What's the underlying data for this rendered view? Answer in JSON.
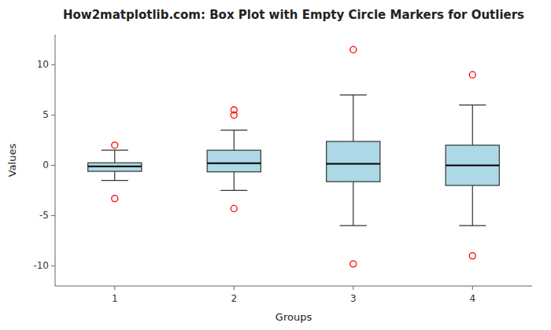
{
  "chart_data": {
    "type": "box",
    "title": "How2matplotlib.com: Box Plot with Empty Circle Markers for Outliers",
    "x_label": "Groups",
    "y_label": "Values",
    "categories": [
      "1",
      "2",
      "3",
      "4"
    ],
    "color": "#add8e6",
    "boxes": [
      {
        "low": -1.5,
        "q1": -0.6,
        "median": -0.1,
        "q3": 0.25,
        "high": 1.5
      },
      {
        "low": -2.5,
        "q1": -0.65,
        "median": 0.2,
        "q3": 1.5,
        "high": 3.5
      },
      {
        "low": -6.0,
        "q1": -1.625,
        "median": 0.15,
        "q3": 2.375,
        "high": 7.0
      },
      {
        "low": -6.0,
        "q1": -2.0,
        "median": 0.0,
        "q3": 2.0,
        "high": 6.0
      }
    ],
    "outliers": {
      "color": "red",
      "marker": "circle",
      "values": [
        [
          -3.3,
          2.0
        ],
        [
          -4.3,
          5.0,
          5.5
        ],
        [
          -9.8,
          11.5
        ],
        [
          -9.0,
          9.0
        ]
      ]
    },
    "ylim": [
      -12,
      13
    ],
    "yticks": [
      -10,
      -5,
      0,
      5,
      10
    ],
    "grid": false
  }
}
